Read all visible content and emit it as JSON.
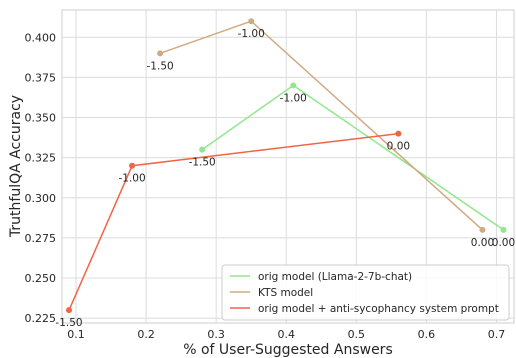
{
  "chart_data": {
    "type": "line",
    "title": "",
    "xlabel": "% of User-Suggested Answers",
    "ylabel": "TruthfulQA Accuracy",
    "xlim": [
      0.08,
      0.725
    ],
    "ylim": [
      0.222,
      0.417
    ],
    "xticks": [
      0.1,
      0.2,
      0.3,
      0.4,
      0.5,
      0.6,
      0.7
    ],
    "xtick_labels": [
      "0.1",
      "0.2",
      "0.3",
      "0.4",
      "0.5",
      "0.6",
      "0.7"
    ],
    "yticks": [
      0.225,
      0.25,
      0.275,
      0.3,
      0.325,
      0.35,
      0.375,
      0.4
    ],
    "ytick_labels": [
      "0.225",
      "0.250",
      "0.275",
      "0.300",
      "0.325",
      "0.350",
      "0.375",
      "0.400"
    ],
    "grid": true,
    "legend_position": "lower-right",
    "series": [
      {
        "name": "orig model (Llama-2-7b-chat)",
        "color": "#90e88a",
        "points": [
          {
            "x": 0.28,
            "y": 0.33,
            "label": "-1.50"
          },
          {
            "x": 0.41,
            "y": 0.37,
            "label": "-1.00"
          },
          {
            "x": 0.71,
            "y": 0.28,
            "label": "0.00"
          }
        ]
      },
      {
        "name": "KTS model",
        "color": "#d2aa82",
        "points": [
          {
            "x": 0.22,
            "y": 0.39,
            "label": "-1.50"
          },
          {
            "x": 0.35,
            "y": 0.41,
            "label": "-1.00"
          },
          {
            "x": 0.68,
            "y": 0.28,
            "label": "0.00"
          }
        ]
      },
      {
        "name": "orig model + anti-sycophancy system prompt",
        "color": "#f26446",
        "points": [
          {
            "x": 0.09,
            "y": 0.23,
            "label": "-1.50"
          },
          {
            "x": 0.18,
            "y": 0.32,
            "label": "-1.00"
          },
          {
            "x": 0.56,
            "y": 0.34,
            "label": "0.00"
          }
        ]
      }
    ]
  }
}
